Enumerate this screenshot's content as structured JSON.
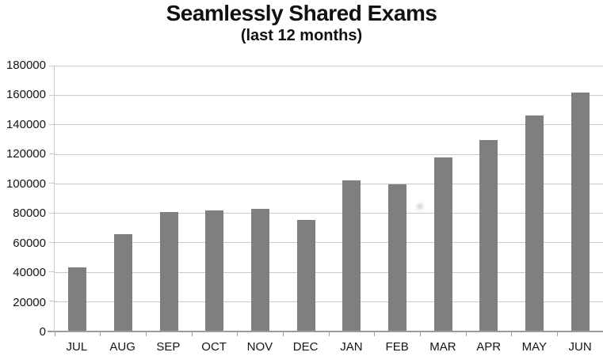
{
  "chart_data": {
    "type": "bar",
    "title": "Seamlessly Shared Exams",
    "subtitle": "(last 12 months)",
    "categories": [
      "JUL",
      "AUG",
      "SEP",
      "OCT",
      "NOV",
      "DEC",
      "JAN",
      "FEB",
      "MAR",
      "APR",
      "MAY",
      "JUN"
    ],
    "values": [
      43000,
      65500,
      80500,
      81500,
      82500,
      75500,
      102000,
      99500,
      117500,
      129500,
      146000,
      162000
    ],
    "xlabel": "",
    "ylabel": "",
    "ylim": [
      0,
      180000
    ],
    "yticks": [
      0,
      20000,
      40000,
      60000,
      80000,
      100000,
      120000,
      140000,
      160000,
      180000
    ],
    "grid": true,
    "legend": false,
    "bar_color": "#7f7f7f",
    "gridline_color": "#c9c9c9",
    "axis_color": "#9c9c9c",
    "text_color": "#151515"
  }
}
